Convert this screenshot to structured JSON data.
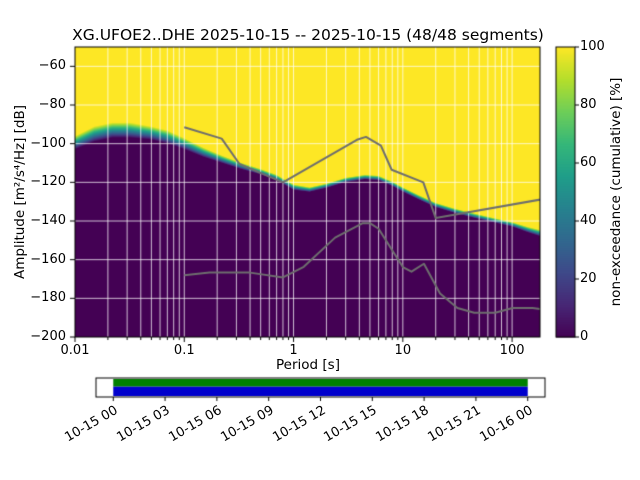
{
  "chart_data": {
    "type": "heatmap",
    "title": "XG.UFOE2..DHE   2025-10-15 -- 2025-10-15  (48/48 segments)",
    "xlabel": "Period [s]",
    "ylabel": "Amplitude [m²/s⁴/Hz] [dB]",
    "xscale": "log",
    "xlim": [
      0.01,
      180
    ],
    "ylim": [
      -200,
      -50
    ],
    "grid": true,
    "colormap": "viridis",
    "xticks": [
      {
        "v": 0.01,
        "label": "0.01"
      },
      {
        "v": 0.1,
        "label": "0.1"
      },
      {
        "v": 1,
        "label": "1"
      },
      {
        "v": 10,
        "label": "10"
      },
      {
        "v": 100,
        "label": "100"
      }
    ],
    "yticks": [
      {
        "v": -60,
        "label": "−60"
      },
      {
        "v": -80,
        "label": "−80"
      },
      {
        "v": -100,
        "label": "−100"
      },
      {
        "v": -120,
        "label": "−120"
      },
      {
        "v": -140,
        "label": "−140"
      },
      {
        "v": -160,
        "label": "−160"
      },
      {
        "v": -180,
        "label": "−180"
      },
      {
        "v": -200,
        "label": "−200"
      }
    ],
    "colorbar": {
      "label": "non-exceedance (cumulative) [%]",
      "lim": [
        0,
        100
      ],
      "ticks": [
        {
          "v": 0,
          "label": "0"
        },
        {
          "v": 20,
          "label": "20"
        },
        {
          "v": 40,
          "label": "40"
        },
        {
          "v": 60,
          "label": "60"
        },
        {
          "v": 80,
          "label": "80"
        },
        {
          "v": 100,
          "label": "100"
        }
      ]
    },
    "cumulative_band": {
      "description": "non-exceedance is 0% below lo_db, rises to 100% at hi_db for each period",
      "periods_s": [
        0.01,
        0.015,
        0.022,
        0.032,
        0.05,
        0.07,
        0.1,
        0.15,
        0.22,
        0.32,
        0.5,
        0.7,
        1.0,
        1.4,
        2.0,
        3.0,
        4.5,
        6.0,
        8.0,
        10,
        14,
        20,
        30,
        45,
        70,
        100,
        140,
        180
      ],
      "lo_db": [
        -103,
        -99,
        -97,
        -97,
        -98,
        -100,
        -103,
        -107,
        -110,
        -113,
        -116,
        -119,
        -124,
        -125,
        -123,
        -120,
        -118.5,
        -119,
        -122,
        -125,
        -129,
        -133,
        -136,
        -138.5,
        -141,
        -143,
        -146,
        -148
      ],
      "hi_db": [
        -96,
        -91,
        -89,
        -89,
        -91,
        -93,
        -97,
        -102,
        -106,
        -109.5,
        -113,
        -116,
        -121,
        -122.5,
        -120.5,
        -117.5,
        -116,
        -116.5,
        -119.5,
        -122.5,
        -126.5,
        -130.5,
        -133.5,
        -136,
        -138.5,
        -140.5,
        -143,
        -144.5
      ]
    },
    "noise_models": {
      "color": "#6e6e6e",
      "nhnm": [
        [
          0.1,
          -91.5
        ],
        [
          0.22,
          -97.4
        ],
        [
          0.32,
          -110.5
        ],
        [
          0.8,
          -120.0
        ],
        [
          3.8,
          -98.0
        ],
        [
          4.6,
          -96.5
        ],
        [
          6.3,
          -101.0
        ],
        [
          7.9,
          -113.5
        ],
        [
          15.4,
          -120.0
        ],
        [
          20.0,
          -138.5
        ],
        [
          354.8,
          -126.0
        ]
      ],
      "nlnm": [
        [
          0.1,
          -168.0
        ],
        [
          0.17,
          -166.7
        ],
        [
          0.4,
          -166.7
        ],
        [
          0.8,
          -169.2
        ],
        [
          1.24,
          -163.7
        ],
        [
          2.4,
          -148.6
        ],
        [
          4.3,
          -141.1
        ],
        [
          5.0,
          -141.1
        ],
        [
          6.0,
          -144.0
        ],
        [
          10.0,
          -163.8
        ],
        [
          12.0,
          -166.2
        ],
        [
          15.6,
          -162.1
        ],
        [
          21.9,
          -177.5
        ],
        [
          31.6,
          -185.0
        ],
        [
          45.0,
          -187.5
        ],
        [
          70.0,
          -187.5
        ],
        [
          101.0,
          -185.0
        ],
        [
          154.0,
          -185.0
        ],
        [
          328.5,
          -187.5
        ]
      ]
    },
    "availability": {
      "axis_hours": [
        -1,
        25
      ],
      "coverage_hours": [
        0,
        24
      ],
      "colors": {
        "top": "#008000",
        "bottom": "#0000cd",
        "empty": "#ffffff"
      },
      "time_ticks": [
        {
          "h": 0,
          "label": "10-15 00"
        },
        {
          "h": 3,
          "label": "10-15 03"
        },
        {
          "h": 6,
          "label": "10-15 06"
        },
        {
          "h": 9,
          "label": "10-15 09"
        },
        {
          "h": 12,
          "label": "10-15 12"
        },
        {
          "h": 15,
          "label": "10-15 15"
        },
        {
          "h": 18,
          "label": "10-15 18"
        },
        {
          "h": 21,
          "label": "10-15 21"
        },
        {
          "h": 24,
          "label": "10-16 00"
        }
      ]
    }
  }
}
